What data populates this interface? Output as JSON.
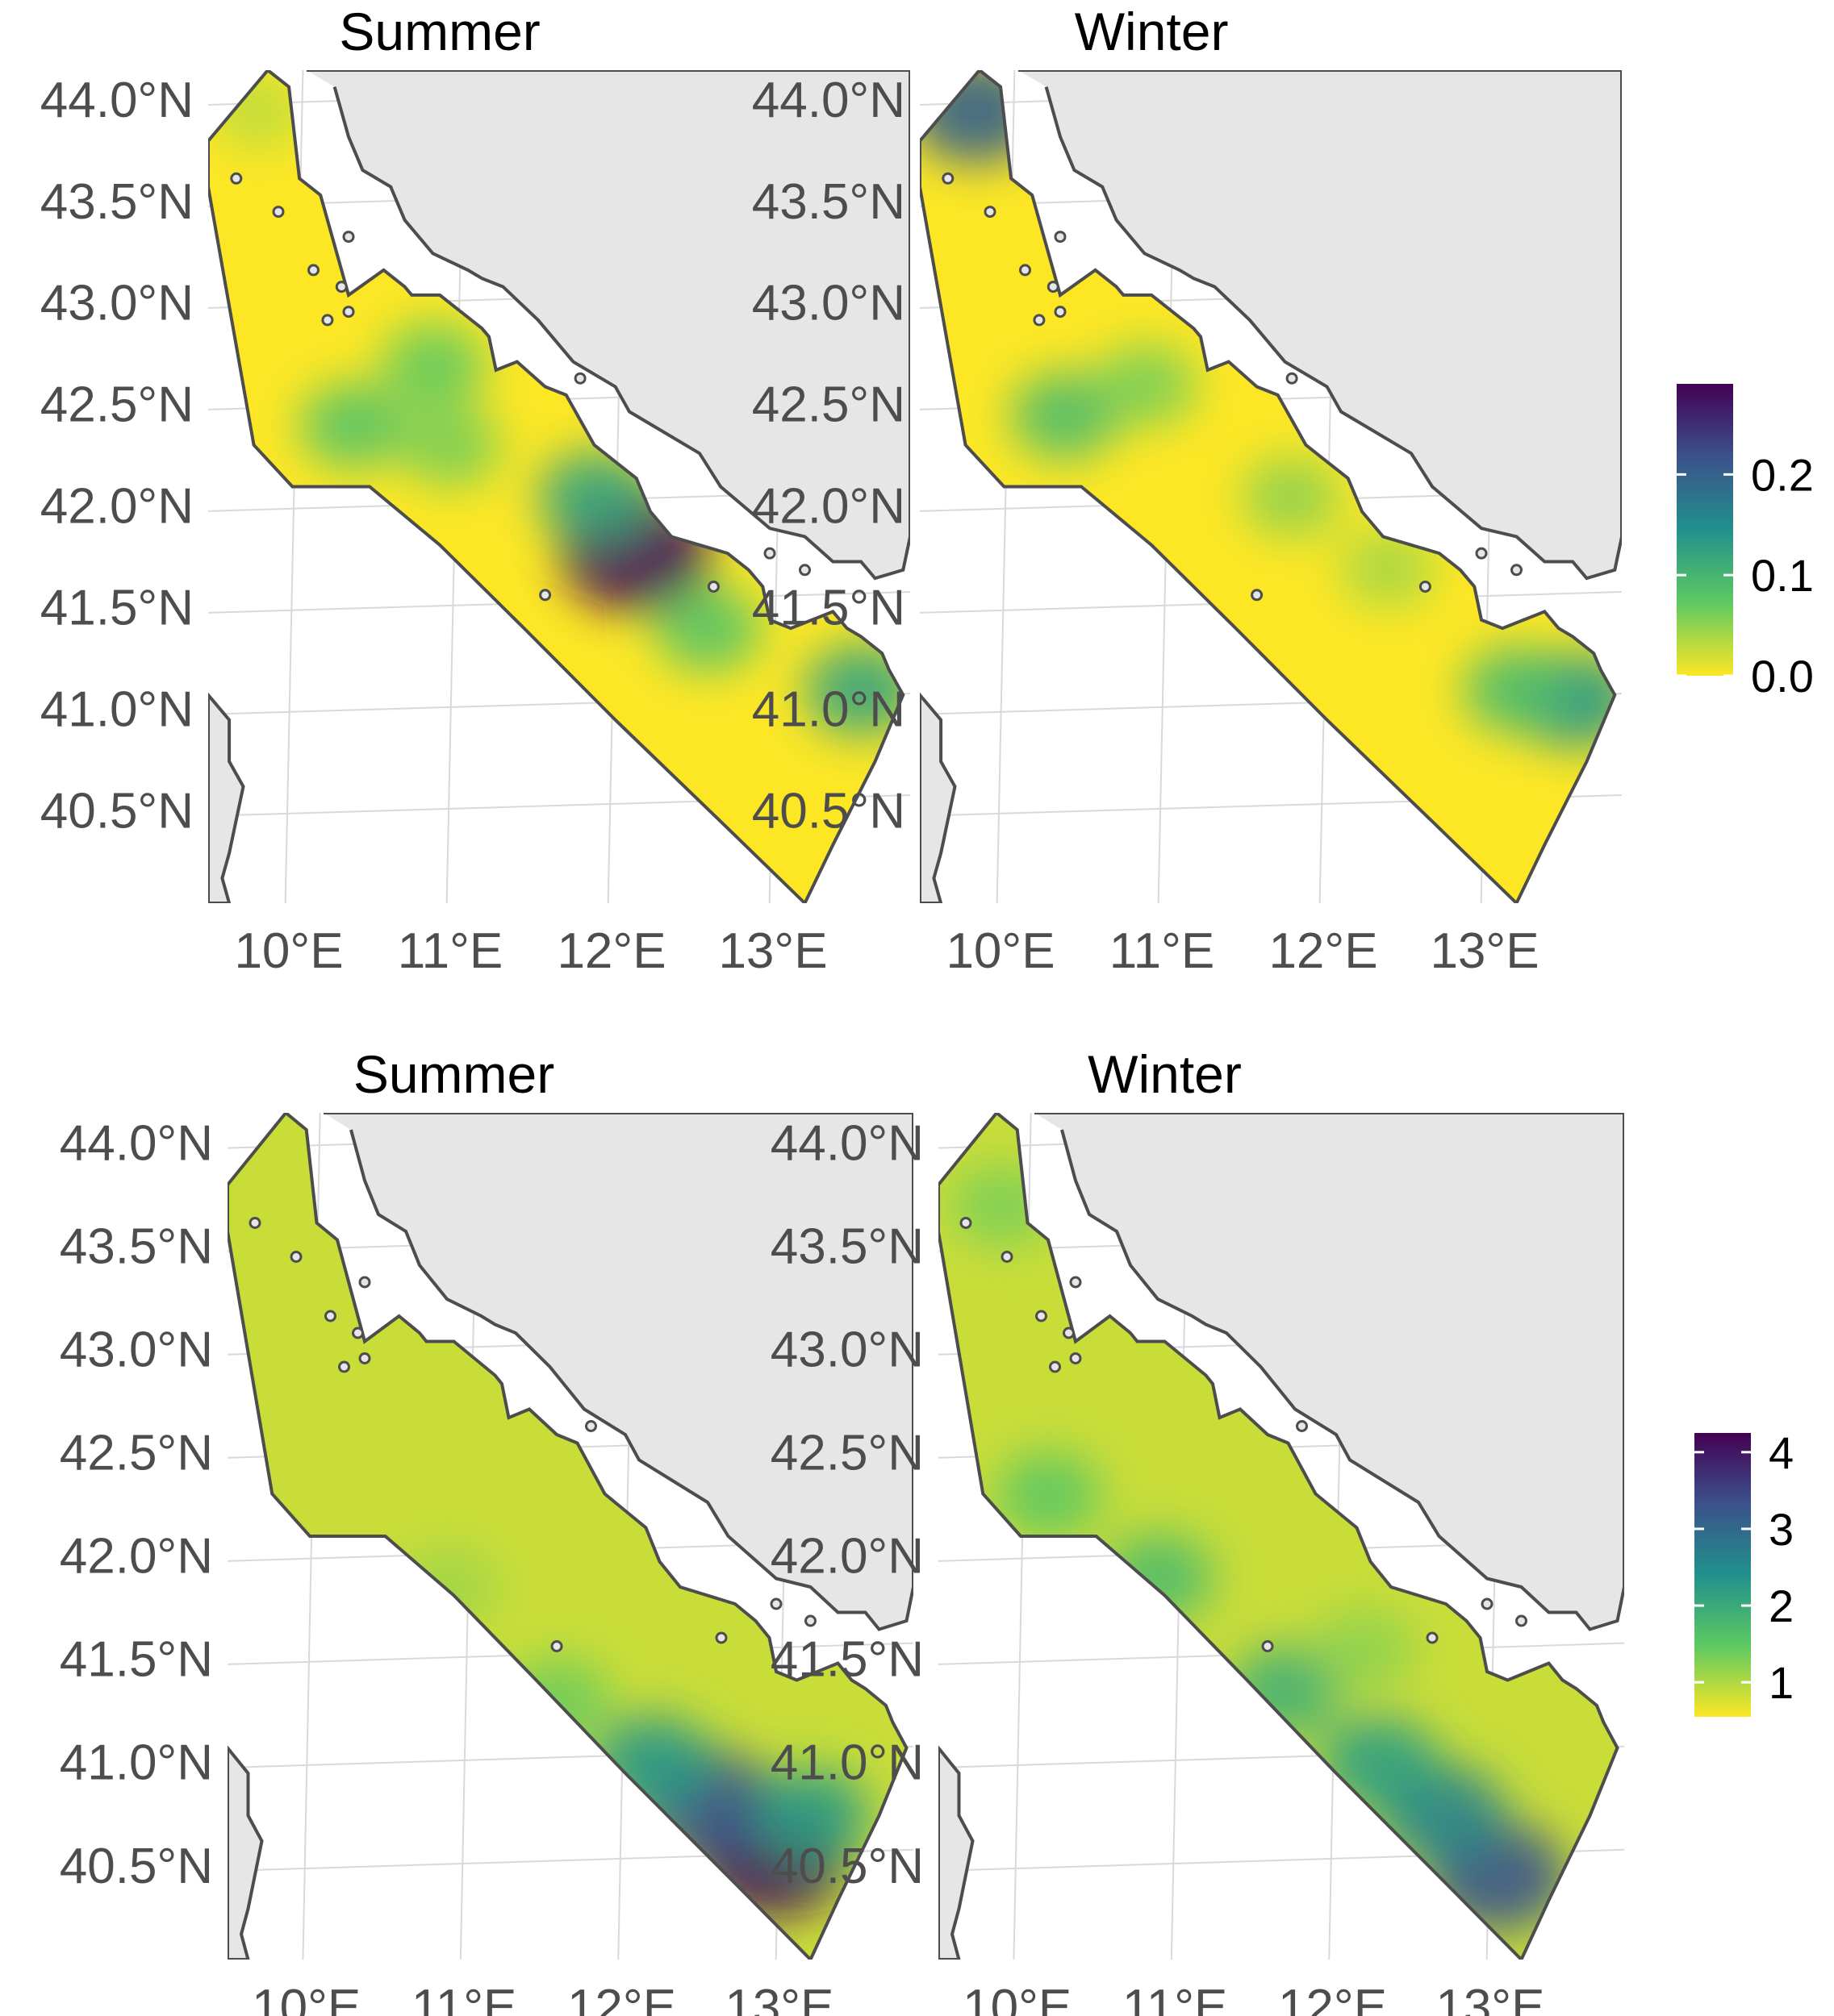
{
  "figure": {
    "rows": [
      {
        "row_id": "top",
        "panels": [
          {
            "title": "Summer",
            "hotspots": [
              {
                "lon": 12.15,
                "lat": 41.78,
                "value": 0.28
              },
              {
                "lon": 11.9,
                "lat": 42.05,
                "value": 0.12
              },
              {
                "lon": 13.55,
                "lat": 41.1,
                "value": 0.12
              },
              {
                "lon": 12.6,
                "lat": 41.4,
                "value": 0.08
              },
              {
                "lon": 10.4,
                "lat": 42.4,
                "value": 0.08
              },
              {
                "lon": 10.9,
                "lat": 42.7,
                "value": 0.07
              },
              {
                "lon": 11.0,
                "lat": 42.3,
                "value": 0.06
              },
              {
                "lon": 9.8,
                "lat": 43.95,
                "value": 0.03
              }
            ]
          },
          {
            "title": "Winter",
            "hotspots": [
              {
                "lon": 9.85,
                "lat": 43.95,
                "value": 0.2
              },
              {
                "lon": 13.55,
                "lat": 41.05,
                "value": 0.14
              },
              {
                "lon": 13.2,
                "lat": 41.1,
                "value": 0.09
              },
              {
                "lon": 10.4,
                "lat": 42.45,
                "value": 0.09
              },
              {
                "lon": 10.9,
                "lat": 42.6,
                "value": 0.06
              },
              {
                "lon": 11.8,
                "lat": 42.05,
                "value": 0.05
              },
              {
                "lon": 12.4,
                "lat": 41.7,
                "value": 0.04
              }
            ]
          }
        ],
        "legend": {
          "ticks": [
            "0.0",
            "0.1",
            "0.2"
          ],
          "tick_values": [
            0.0,
            0.1,
            0.2
          ],
          "min": 0.0,
          "max": 0.29
        }
      },
      {
        "row_id": "bottom",
        "panels": [
          {
            "title": "Summer",
            "hotspots": [
              {
                "lon": 12.95,
                "lat": 40.55,
                "value": 4.1
              },
              {
                "lon": 12.55,
                "lat": 40.8,
                "value": 3.3
              },
              {
                "lon": 12.2,
                "lat": 41.0,
                "value": 2.3
              },
              {
                "lon": 13.2,
                "lat": 40.75,
                "value": 2.2
              },
              {
                "lon": 11.6,
                "lat": 41.3,
                "value": 1.4
              },
              {
                "lon": 10.9,
                "lat": 41.85,
                "value": 1.1
              }
            ]
          },
          {
            "title": "Winter",
            "hotspots": [
              {
                "lon": 13.05,
                "lat": 40.45,
                "value": 3.3
              },
              {
                "lon": 12.7,
                "lat": 40.75,
                "value": 2.6
              },
              {
                "lon": 12.3,
                "lat": 41.0,
                "value": 2.2
              },
              {
                "lon": 11.7,
                "lat": 41.35,
                "value": 1.9
              },
              {
                "lon": 10.9,
                "lat": 41.9,
                "value": 1.7
              },
              {
                "lon": 10.2,
                "lat": 42.3,
                "value": 1.5
              },
              {
                "lon": 9.9,
                "lat": 43.7,
                "value": 1.3
              },
              {
                "lon": 12.2,
                "lat": 41.55,
                "value": 1.2
              }
            ]
          }
        ],
        "legend": {
          "ticks": [
            "1",
            "2",
            "3",
            "4"
          ],
          "tick_values": [
            1,
            2,
            3,
            4
          ],
          "min": 0.55,
          "max": 4.25
        }
      }
    ],
    "y_ticks": [
      "44.0°N",
      "43.5°N",
      "43.0°N",
      "42.5°N",
      "42.0°N",
      "41.5°N",
      "41.0°N",
      "40.5°N"
    ],
    "y_tick_values": [
      44.0,
      43.5,
      43.0,
      42.5,
      42.0,
      41.5,
      41.0,
      40.5
    ],
    "x_ticks": [
      "10°E",
      "11°E",
      "12°E",
      "13°E"
    ],
    "x_tick_values": [
      10,
      11,
      12,
      13
    ],
    "colors": {
      "land": "#e6e6e6",
      "coast": "#4d4d4d",
      "grid": "#d9d9d9",
      "viridis": [
        "#fde725",
        "#5ec962",
        "#21918c",
        "#3b528b",
        "#440154"
      ]
    }
  }
}
